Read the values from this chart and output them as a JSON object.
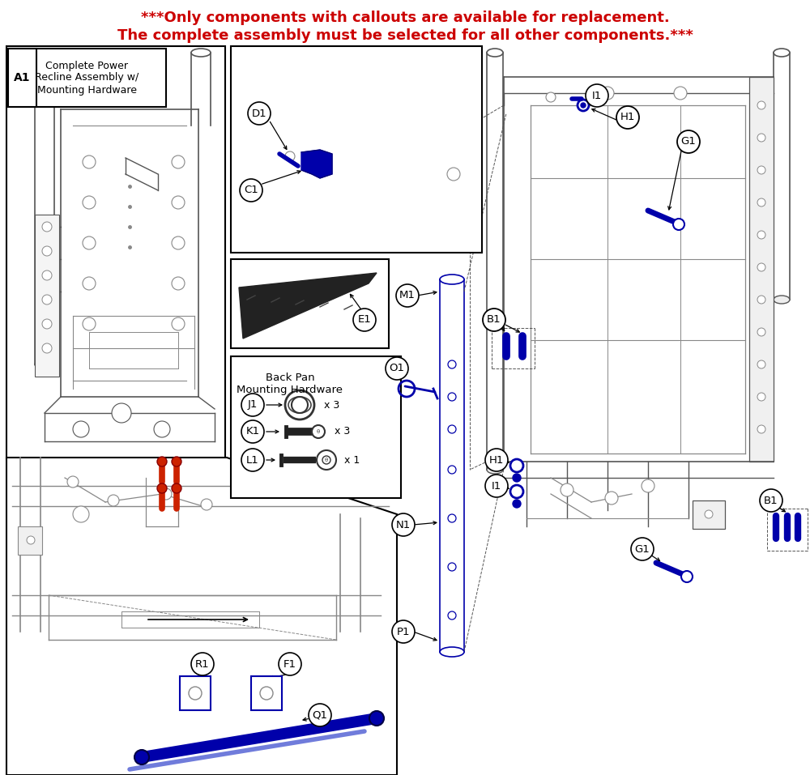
{
  "title_line1": "***Only components with callouts are available for replacement.",
  "title_line2": "The complete assembly must be selected for all other components.***",
  "title_color": "#cc0000",
  "bg_color": "#ffffff",
  "dark_blue": "#0000AA",
  "med_blue": "#2222BB",
  "line_gray": "#555555",
  "light_gray": "#888888",
  "box_A1_label": "A1",
  "box_A1_text": "Complete Power\nRecline Assembly w/\nMounting Hardware",
  "box_backpan_text": "Back Pan\nMounting Hardware",
  "qty_J1": "x 3",
  "qty_K1": "x 3",
  "qty_L1": "x 1"
}
